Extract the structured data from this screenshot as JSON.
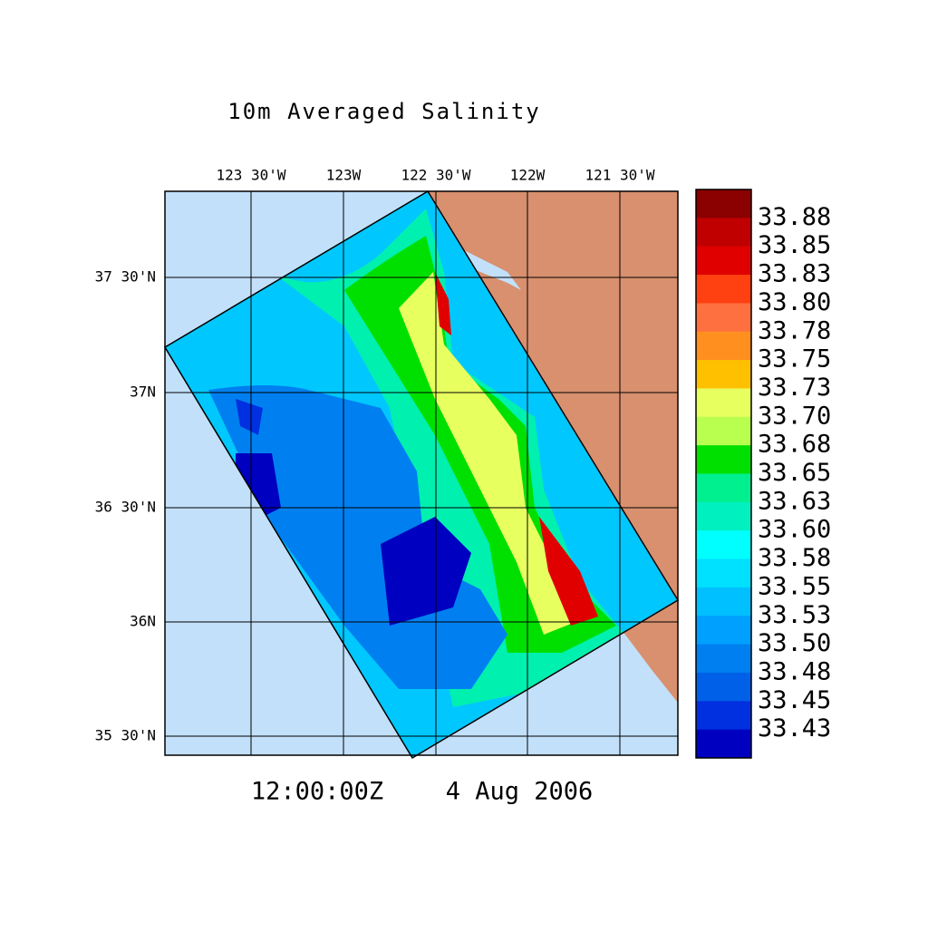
{
  "title": "10m Averaged Salinity",
  "x_labels": [
    "123 30'W",
    "123W",
    "122 30'W",
    "122W",
    "121 30'W"
  ],
  "y_labels": [
    "37 30'N",
    "37N",
    "36 30'N",
    "36N",
    "35 30'N"
  ],
  "colorbar": {
    "labels": [
      "33.88",
      "33.85",
      "33.83",
      "33.80",
      "33.78",
      "33.75",
      "33.73",
      "33.70",
      "33.68",
      "33.65",
      "33.63",
      "33.60",
      "33.58",
      "33.55",
      "33.53",
      "33.50",
      "33.48",
      "33.45",
      "33.43"
    ],
    "colors": [
      "#8b0000",
      "#c00000",
      "#e00000",
      "#ff4010",
      "#ff7040",
      "#ff9020",
      "#ffc000",
      "#e8ff60",
      "#b8ff50",
      "#00e000",
      "#00f090",
      "#00f0c0",
      "#00ffff",
      "#00e0ff",
      "#00c0ff",
      "#00a0ff",
      "#0080f0",
      "#0060e8",
      "#0030e0",
      "#0000c0"
    ]
  },
  "time": "12:00:00Z",
  "date": "4 Aug 2006"
}
